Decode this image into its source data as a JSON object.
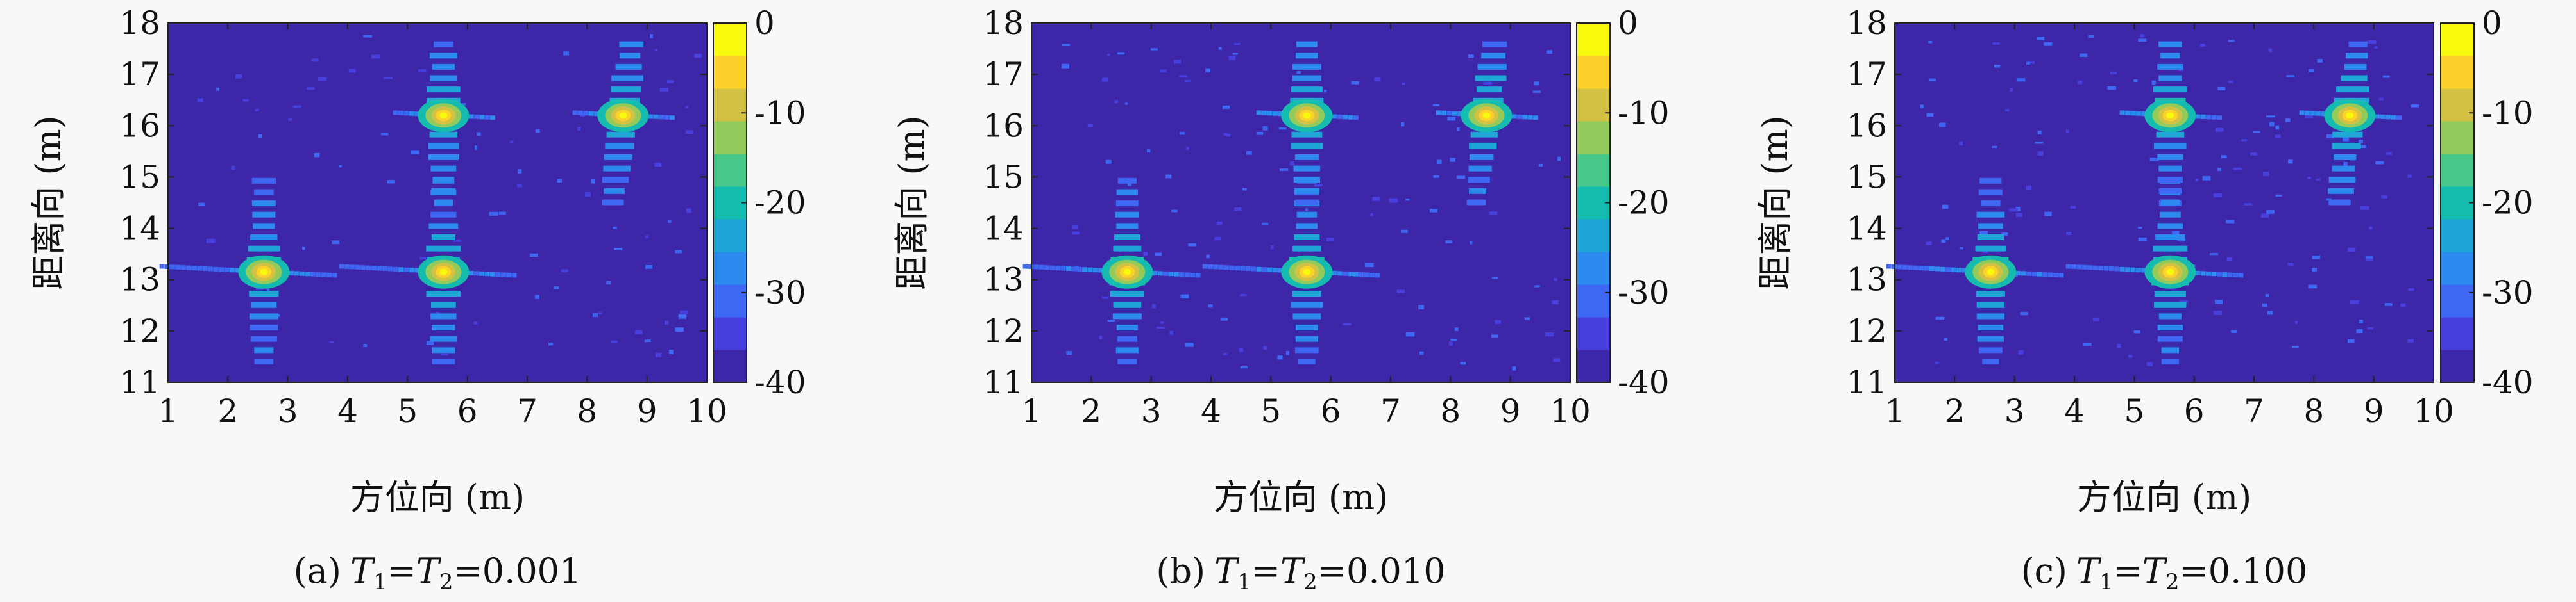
{
  "figure": {
    "background": "#f8f8f8",
    "colormap": [
      "#3e26a8",
      "#4740de",
      "#3e68f4",
      "#2d8aef",
      "#1ea6d6",
      "#16bbb0",
      "#45c88a",
      "#93ca5c",
      "#d2c143",
      "#fcd12a",
      "#f8fa0d"
    ]
  },
  "chart_data": [
    {
      "type": "heatmap",
      "panel_label": "(a)",
      "caption_value": "=0.001",
      "xlabel": "方位向 (m)",
      "ylabel": "距离向 (m)",
      "xlim": [
        1,
        10
      ],
      "ylim": [
        11,
        18
      ],
      "xticks": [
        1,
        2,
        3,
        4,
        5,
        6,
        7,
        8,
        9,
        10
      ],
      "yticks": [
        11,
        12,
        13,
        14,
        15,
        16,
        17,
        18
      ],
      "colorbar": {
        "ticks": [
          0,
          -10,
          -20,
          -30,
          -40
        ],
        "range": [
          -40,
          0
        ]
      },
      "peaks": [
        {
          "x": 2.6,
          "y": 13.15,
          "value_db": 0
        },
        {
          "x": 5.6,
          "y": 13.15,
          "value_db": 0
        },
        {
          "x": 5.6,
          "y": 16.2,
          "value_db": 0
        },
        {
          "x": 8.6,
          "y": 16.2,
          "value_db": 0
        }
      ]
    },
    {
      "type": "heatmap",
      "panel_label": "(b)",
      "caption_value": "=0.010",
      "xlabel": "方位向 (m)",
      "ylabel": "距离向 (m)",
      "xlim": [
        1,
        10
      ],
      "ylim": [
        11,
        18
      ],
      "xticks": [
        1,
        2,
        3,
        4,
        5,
        6,
        7,
        8,
        9,
        10
      ],
      "yticks": [
        11,
        12,
        13,
        14,
        15,
        16,
        17,
        18
      ],
      "colorbar": {
        "ticks": [
          0,
          -10,
          -20,
          -30,
          -40
        ],
        "range": [
          -40,
          0
        ]
      },
      "peaks": [
        {
          "x": 2.6,
          "y": 13.15,
          "value_db": 0
        },
        {
          "x": 5.6,
          "y": 13.15,
          "value_db": 0
        },
        {
          "x": 5.6,
          "y": 16.2,
          "value_db": 0
        },
        {
          "x": 8.6,
          "y": 16.2,
          "value_db": 0
        }
      ]
    },
    {
      "type": "heatmap",
      "panel_label": "(c)",
      "caption_value": "=0.100",
      "xlabel": "方位向 (m)",
      "ylabel": "距离向 (m)",
      "xlim": [
        1,
        10
      ],
      "ylim": [
        11,
        18
      ],
      "xticks": [
        1,
        2,
        3,
        4,
        5,
        6,
        7,
        8,
        9,
        10
      ],
      "yticks": [
        11,
        12,
        13,
        14,
        15,
        16,
        17,
        18
      ],
      "colorbar": {
        "ticks": [
          0,
          -10,
          -20,
          -30,
          -40
        ],
        "range": [
          -40,
          0
        ]
      },
      "peaks": [
        {
          "x": 2.6,
          "y": 13.15,
          "value_db": 0
        },
        {
          "x": 5.6,
          "y": 13.15,
          "value_db": 0
        },
        {
          "x": 5.6,
          "y": 16.2,
          "value_db": 0
        },
        {
          "x": 8.6,
          "y": 16.2,
          "value_db": 0
        }
      ]
    }
  ]
}
